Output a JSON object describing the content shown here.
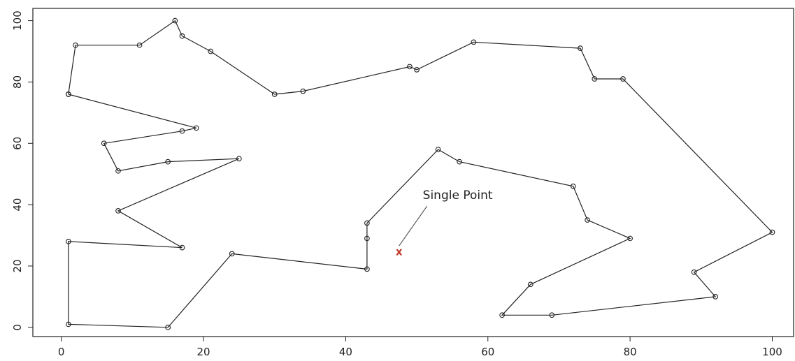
{
  "chart_data": {
    "type": "line",
    "title": "",
    "xlabel": "",
    "ylabel": "",
    "xlim": [
      -4,
      103
    ],
    "ylim": [
      -3,
      104
    ],
    "grid": false,
    "x_ticks": [
      "0",
      "20",
      "40",
      "60",
      "80",
      "100"
    ],
    "y_ticks": [
      "0",
      "20",
      "40",
      "60",
      "80",
      "100"
    ],
    "series": [
      {
        "marker": "open-circle",
        "color": "#222222",
        "x": [
          1,
          2,
          11,
          16,
          17,
          21,
          30,
          34,
          49,
          50,
          58,
          73,
          75,
          79,
          100,
          89,
          92,
          69,
          62,
          66,
          80,
          74,
          72,
          56,
          53,
          43,
          43,
          43,
          24,
          15,
          1,
          1,
          17,
          8,
          25,
          15,
          8,
          6,
          17,
          19,
          1
        ],
        "y": [
          76,
          92,
          92,
          100,
          95,
          90,
          76,
          77,
          85,
          84,
          93,
          91,
          81,
          81,
          31,
          18,
          10,
          4,
          4,
          14,
          29,
          35,
          46,
          54,
          58,
          34,
          29,
          19,
          24,
          0,
          1,
          28,
          26,
          38,
          55,
          54,
          51,
          60,
          64,
          65,
          76
        ]
      }
    ],
    "annotations": [
      {
        "text": "Single Point",
        "x": 47.5,
        "y": 24.5,
        "marker": "x",
        "marker_color": "#c0392b"
      }
    ]
  }
}
